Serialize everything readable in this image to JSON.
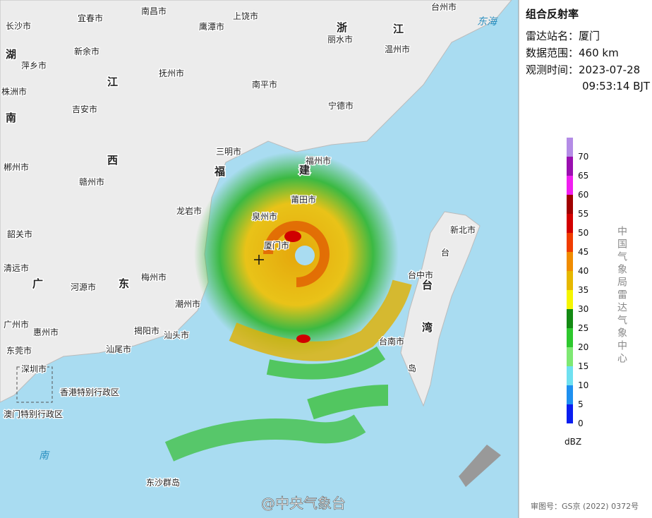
{
  "info": {
    "title": "组合反射率",
    "station": "雷达站名：厦门",
    "range": "数据范围：460 km",
    "time_line1": "观测时间：2023-07-28",
    "time_line2": "09:53:14 BJT"
  },
  "legend": {
    "unit": "dBZ",
    "items": [
      {
        "value": 0,
        "color": "#0a1ef0"
      },
      {
        "value": 5,
        "color": "#1e90f0"
      },
      {
        "value": 10,
        "color": "#6fe0f0"
      },
      {
        "value": 15,
        "color": "#7ee873"
      },
      {
        "value": 20,
        "color": "#2ec82e"
      },
      {
        "value": 25,
        "color": "#138a13"
      },
      {
        "value": 30,
        "color": "#f5f500"
      },
      {
        "value": 35,
        "color": "#e6b800"
      },
      {
        "value": 40,
        "color": "#f08c00"
      },
      {
        "value": 45,
        "color": "#f03c00"
      },
      {
        "value": 50,
        "color": "#d20000"
      },
      {
        "value": 55,
        "color": "#a00000"
      },
      {
        "value": 60,
        "color": "#f01ef0"
      },
      {
        "value": 65,
        "color": "#9a0fb0"
      },
      {
        "value": 70,
        "color": "#b48ce6"
      }
    ]
  },
  "source": "中国气象局雷达气象中心",
  "approval": "审图号：GS京 (2022) 0372号",
  "watermark": "@中央气象台",
  "map_labels": [
    "宜春市",
    "南昌市",
    "上饶市",
    "鹰潭市",
    "长沙市",
    "新余市",
    "湖",
    "萍乡市",
    "株洲市",
    "抚州市",
    "江",
    "南",
    "吉安市",
    "南平市",
    "宁德市",
    "西",
    "三明市",
    "福",
    "赣州市",
    "郴州市",
    "龙岩市",
    "建",
    "福州市",
    "莆田市",
    "泉州市",
    "厦门市",
    "韶关市",
    "清远市",
    "广",
    "东",
    "河源市",
    "梅州市",
    "潮州市",
    "广州市",
    "惠州市",
    "揭阳市",
    "汕头市",
    "汕尾市",
    "东莞市",
    "深圳市",
    "香港特别行政区",
    "澳门特别行政区",
    "南",
    "东沙群岛",
    "浙",
    "丽水市",
    "江",
    "温州市",
    "台州市",
    "东海",
    "台中市",
    "台",
    "湾",
    "台南市",
    "新北市",
    "台",
    "岛"
  ]
}
